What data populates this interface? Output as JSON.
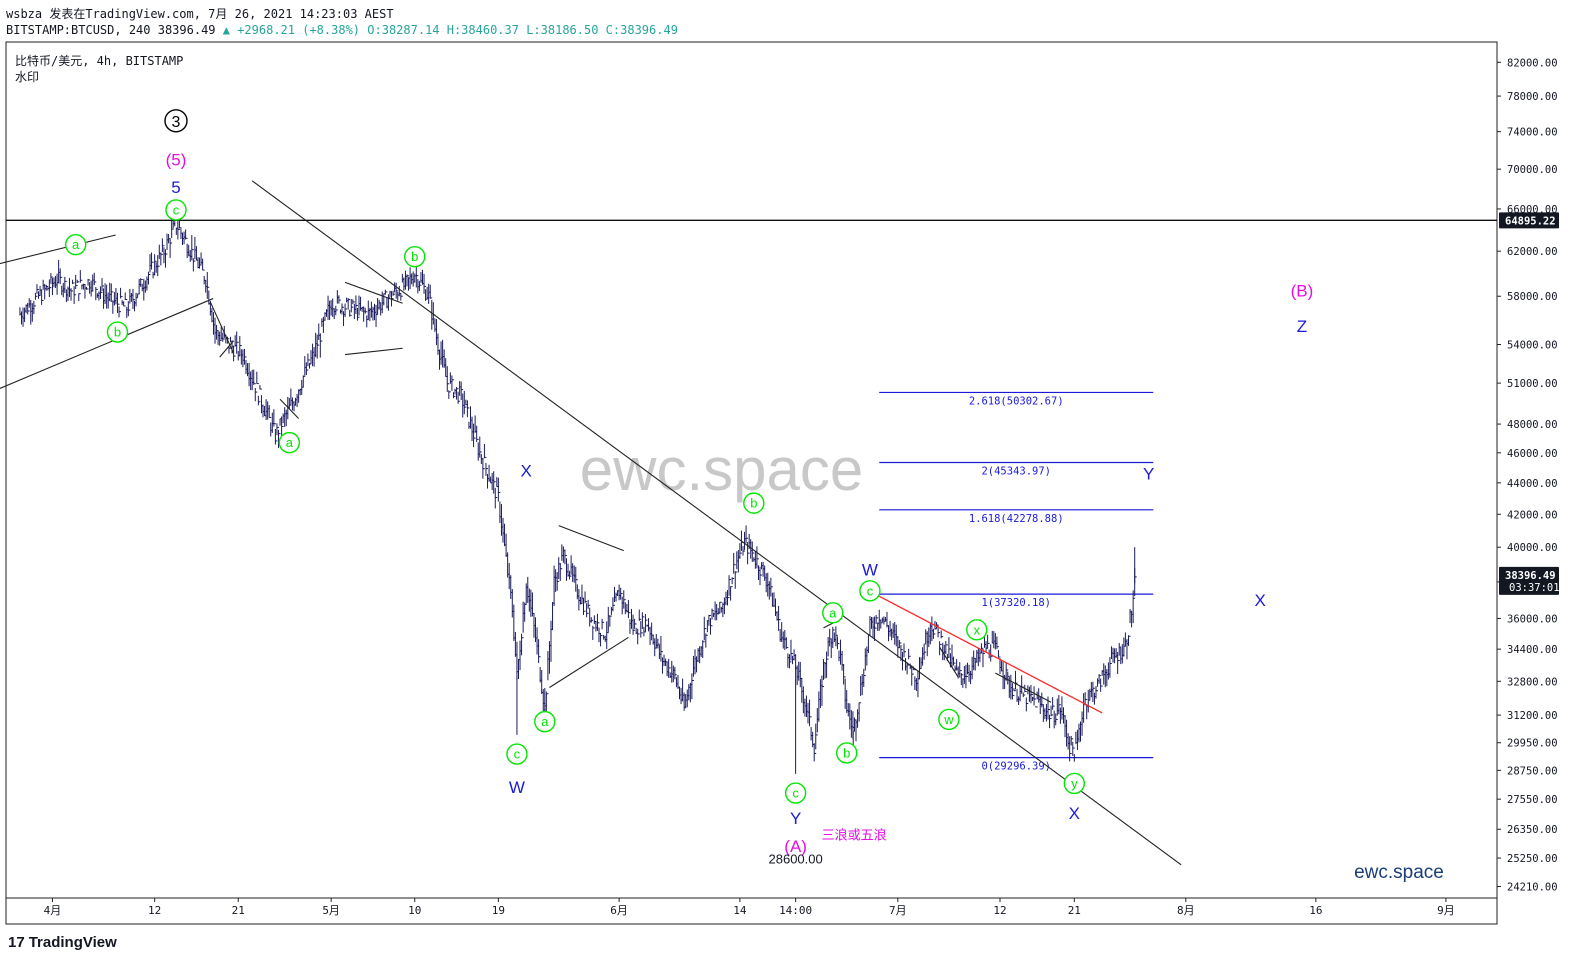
{
  "header": {
    "author_line": "wsbza 发表在TradingView.com, 7月 26, 2021 14:23:03 AEST",
    "symbol_line": "BITSTAMP:BTCUSD, 240 38396.49",
    "change": "▲ +2968.21 (+8.38%)",
    "ohlc": "O:38287.14 H:38460.37 L:38186.50 C:38396.49"
  },
  "symbol_title": "比特币/美元, 4h, BITSTAMP",
  "watermark_label": "水印",
  "watermark_big": "ewc.space",
  "watermark_small": "ewc.space",
  "footer_logo": "TradingView",
  "colors": {
    "candle": "#1a1a5e",
    "green_label": "#00e600",
    "blue_label": "#1a1ad9",
    "magenta": "#e60ee6",
    "fib_line": "#1a1ad9",
    "red_line": "#ff2a2a",
    "black_line": "#222222"
  },
  "chart_data": {
    "type": "candlestick",
    "scale": "log",
    "ylim": [
      23800,
      84500
    ],
    "yticks": [
      82000,
      78000,
      74000,
      70000,
      66000,
      62000,
      58000,
      54000,
      51000,
      48000,
      46000,
      44000,
      42000,
      40000,
      38000,
      36000,
      34400,
      32800,
      31200,
      29950,
      28750,
      27550,
      26350,
      25250,
      24210
    ],
    "ytick_labels": [
      "82000.00",
      "78000.00",
      "74000.00",
      "70000.00",
      "66000.00",
      "62000.00",
      "58000.00",
      "54000.00",
      "51000.00",
      "48000.00",
      "46000.00",
      "44000.00",
      "42000.00",
      "40000.00",
      "38000.00",
      "36000.00",
      "34400.00",
      "32800.00",
      "31200.00",
      "29950.00",
      "28750.00",
      "27550.00",
      "26350.00",
      "25250.00",
      "24210.00"
    ],
    "xticks": [
      "4月",
      "12",
      "21",
      "5月",
      "10",
      "19",
      "6月",
      "14",
      "14:00",
      "7月",
      "12",
      "21",
      "8月",
      "16",
      "9月"
    ],
    "xtick_days": [
      0,
      11,
      20,
      30,
      39,
      48,
      61,
      74,
      80,
      91,
      102,
      110,
      122,
      136,
      150
    ],
    "x_axis_start": "2021-04-01",
    "last_day": 116.6,
    "last_price": 38396.49,
    "last_price_label": "38396.49",
    "countdown": "03:37:01",
    "hline_price": 64895.22,
    "hline_label": "64895.22",
    "price_path": [
      [
        -3.5,
        56500
      ],
      [
        -1.5,
        58000
      ],
      [
        0.5,
        59500
      ],
      [
        2,
        58500
      ],
      [
        4,
        59300
      ],
      [
        6,
        57800
      ],
      [
        8,
        57000
      ],
      [
        10,
        59500
      ],
      [
        12,
        62000
      ],
      [
        13.3,
        64600
      ],
      [
        14.8,
        62200
      ],
      [
        16.5,
        59500
      ],
      [
        17.5,
        55000
      ],
      [
        19,
        54000
      ],
      [
        20.5,
        53200
      ],
      [
        22,
        50500
      ],
      [
        24,
        47200
      ],
      [
        26,
        49800
      ],
      [
        27,
        51500
      ],
      [
        28,
        53000
      ],
      [
        30,
        57500
      ],
      [
        32,
        57000
      ],
      [
        34,
        56500
      ],
      [
        36,
        57800
      ],
      [
        38,
        59000
      ],
      [
        39,
        60000
      ],
      [
        40.5,
        58000
      ],
      [
        41.5,
        54000
      ],
      [
        42.5,
        51000
      ],
      [
        44,
        50000
      ],
      [
        46,
        46000
      ],
      [
        48,
        43000
      ],
      [
        49.5,
        36500
      ],
      [
        50,
        33000
      ],
      [
        51,
        38000
      ],
      [
        52,
        35000
      ],
      [
        53,
        31500
      ],
      [
        54,
        38000
      ],
      [
        55,
        39500
      ],
      [
        56.5,
        37500
      ],
      [
        58,
        36000
      ],
      [
        59.5,
        35200
      ],
      [
        61,
        37500
      ],
      [
        62.5,
        35500
      ],
      [
        64,
        35800
      ],
      [
        65.5,
        34000
      ],
      [
        67,
        33000
      ],
      [
        68,
        31500
      ],
      [
        69,
        33500
      ],
      [
        70.5,
        35800
      ],
      [
        72,
        36500
      ],
      [
        73.5,
        39000
      ],
      [
        74.5,
        40300
      ],
      [
        75.5,
        39500
      ],
      [
        77,
        38000
      ],
      [
        78.5,
        35000
      ],
      [
        80,
        33500
      ],
      [
        81,
        31800
      ],
      [
        82,
        29800
      ],
      [
        83,
        33500
      ],
      [
        84,
        35500
      ],
      [
        84.8,
        34000
      ],
      [
        85.5,
        31500
      ],
      [
        86.2,
        30500
      ],
      [
        87,
        32500
      ],
      [
        88,
        35500
      ],
      [
        89,
        36200
      ],
      [
        90,
        35500
      ],
      [
        91.5,
        34200
      ],
      [
        93,
        33000
      ],
      [
        94.5,
        35800
      ],
      [
        96,
        34500
      ],
      [
        97.5,
        33000
      ],
      [
        99,
        33500
      ],
      [
        100.5,
        34500
      ],
      [
        101.5,
        34400
      ],
      [
        103,
        32600
      ],
      [
        104.5,
        32100
      ],
      [
        106,
        31800
      ],
      [
        107.5,
        31200
      ],
      [
        108.5,
        31500
      ],
      [
        109.5,
        29800
      ],
      [
        110.2,
        29600
      ],
      [
        111,
        31800
      ],
      [
        112.5,
        32600
      ],
      [
        114,
        33800
      ],
      [
        115.5,
        34600
      ],
      [
        116.2,
        36500
      ],
      [
        116.6,
        38396
      ]
    ],
    "extra_wicks": [
      [
        50,
        30300
      ],
      [
        53,
        30600
      ],
      [
        80,
        28600
      ],
      [
        86.2,
        29600
      ],
      [
        116.5,
        40000
      ]
    ],
    "trendlines": [
      {
        "color": "black",
        "from": [
          -6,
          60800
        ],
        "to": [
          6.8,
          63500
        ]
      },
      {
        "color": "black",
        "from": [
          -6,
          50500
        ],
        "to": [
          17.3,
          57800
        ]
      },
      {
        "color": "black",
        "from": [
          17,
          57500
        ],
        "to": [
          19.5,
          53300
        ]
      },
      {
        "color": "black",
        "from": [
          18,
          53000
        ],
        "to": [
          19.5,
          54300
        ]
      },
      {
        "color": "black",
        "from": [
          24.5,
          49800
        ],
        "to": [
          26.5,
          48400
        ]
      },
      {
        "color": "black",
        "from": [
          31.5,
          59200
        ],
        "to": [
          37.7,
          57400
        ]
      },
      {
        "color": "black",
        "from": [
          31.5,
          53200
        ],
        "to": [
          37.7,
          53700
        ]
      },
      {
        "color": "black",
        "from": [
          54.5,
          41300
        ],
        "to": [
          61.5,
          39800
        ]
      },
      {
        "color": "black",
        "from": [
          53.5,
          32500
        ],
        "to": [
          62,
          35000
        ]
      },
      {
        "color": "black",
        "from": [
          21.5,
          68800
        ],
        "to": [
          121.5,
          25000
        ]
      },
      {
        "color": "black",
        "from": [
          83,
          35500
        ],
        "to": [
          85,
          36000
        ]
      },
      {
        "color": "black",
        "from": [
          95.5,
          34500
        ],
        "to": [
          97.5,
          33000
        ]
      },
      {
        "color": "black",
        "from": [
          101.5,
          33200
        ],
        "to": [
          107.5,
          31800
        ]
      },
      {
        "color": "red",
        "from": [
          89,
          37200
        ],
        "to": [
          113,
          31300
        ]
      }
    ],
    "fib_from_day": 89,
    "fib_to_day": 118.5,
    "fib_levels": [
      {
        "price": 50302.67,
        "label": "2.618(50302.67)"
      },
      {
        "price": 45343.97,
        "label": "2(45343.97)"
      },
      {
        "price": 42278.88,
        "label": "1.618(42278.88)"
      },
      {
        "price": 37320.18,
        "label": "1(37320.18)"
      },
      {
        "price": 29296.39,
        "label": "0(29296.39)"
      }
    ],
    "wave_labels": [
      {
        "text": "3",
        "day": 13.3,
        "price": 75200,
        "style": "circle_black"
      },
      {
        "text": "(5)",
        "day": 13.3,
        "price": 71000,
        "style": "magenta"
      },
      {
        "text": "5",
        "day": 13.3,
        "price": 68200,
        "style": "blue"
      },
      {
        "text": "c",
        "day": 13.3,
        "price": 65900,
        "style": "circle_green"
      },
      {
        "text": "a",
        "day": 2.5,
        "price": 62600,
        "style": "circle_green"
      },
      {
        "text": "b",
        "day": 7,
        "price": 55000,
        "style": "circle_green"
      },
      {
        "text": "a",
        "day": 25.5,
        "price": 46700,
        "style": "circle_green"
      },
      {
        "text": "b",
        "day": 39,
        "price": 61500,
        "style": "circle_green"
      },
      {
        "text": "X",
        "day": 51,
        "price": 44800,
        "style": "blue"
      },
      {
        "text": "c",
        "day": 50,
        "price": 29450,
        "style": "circle_green"
      },
      {
        "text": "W",
        "day": 50,
        "price": 28050,
        "style": "blue"
      },
      {
        "text": "a",
        "day": 53,
        "price": 30900,
        "style": "circle_green"
      },
      {
        "text": "b",
        "day": 75.5,
        "price": 42700,
        "style": "circle_green"
      },
      {
        "text": "c",
        "day": 80,
        "price": 27800,
        "style": "circle_green"
      },
      {
        "text": "Y",
        "day": 80,
        "price": 26800,
        "style": "blue"
      },
      {
        "text": "(A)",
        "day": 80,
        "price": 25700,
        "style": "magenta"
      },
      {
        "text": "a",
        "day": 84,
        "price": 36300,
        "style": "circle_green"
      },
      {
        "text": "b",
        "day": 85.5,
        "price": 29500,
        "style": "circle_green"
      },
      {
        "text": "W",
        "day": 88,
        "price": 38700,
        "style": "blue"
      },
      {
        "text": "c",
        "day": 88,
        "price": 37500,
        "style": "circle_green"
      },
      {
        "text": "x",
        "day": 99.5,
        "price": 35400,
        "style": "circle_green"
      },
      {
        "text": "w",
        "day": 96.5,
        "price": 31000,
        "style": "circle_green"
      },
      {
        "text": "y",
        "day": 110,
        "price": 28200,
        "style": "circle_green"
      },
      {
        "text": "X",
        "day": 110,
        "price": 27000,
        "style": "blue"
      },
      {
        "text": "Y",
        "day": 118,
        "price": 44600,
        "style": "blue"
      },
      {
        "text": "X",
        "day": 130,
        "price": 37000,
        "style": "blue"
      },
      {
        "text": "(B)",
        "day": 134.5,
        "price": 58500,
        "style": "magenta"
      },
      {
        "text": "Z",
        "day": 134.5,
        "price": 55500,
        "style": "blue"
      }
    ],
    "annotations": [
      {
        "text": "28600.00",
        "day": 80,
        "price": 25050,
        "style": "price_note"
      },
      {
        "text": "三浪或五浪",
        "day": 86.3,
        "price": 25950,
        "style": "magenta_note"
      }
    ]
  }
}
